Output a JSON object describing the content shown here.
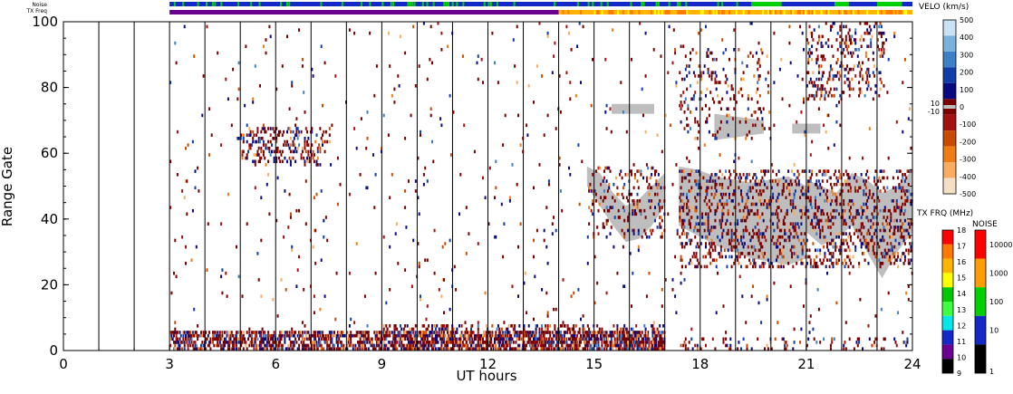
{
  "header": {
    "noise_label": "Noise",
    "txfreq_label": "TX Freq"
  },
  "chart_data": {
    "type": "heatmap",
    "xlabel": "UT hours",
    "ylabel": "Range Gate",
    "xlim": [
      0,
      24
    ],
    "ylim": [
      0,
      100
    ],
    "x_ticks": [
      "0",
      "3",
      "6",
      "9",
      "12",
      "15",
      "18",
      "21",
      "24"
    ],
    "y_ticks": [
      "0",
      "20",
      "40",
      "60",
      "80",
      "100"
    ],
    "scan_boundaries_hours": [
      1,
      2,
      3,
      4,
      5,
      6,
      7,
      8,
      9,
      10,
      11,
      12,
      13,
      14,
      15,
      16,
      17,
      18,
      19,
      20,
      21,
      22,
      23
    ],
    "velocity_colorbar": {
      "title": "VELO (km/s)",
      "tick_labels": [
        "500",
        "400",
        "300",
        "200",
        "100",
        "0",
        "-100",
        "-200",
        "-300",
        "-400",
        "-500"
      ],
      "ground_scatter_labels": [
        "10",
        "-10"
      ],
      "colors": [
        "#f5dfc4",
        "#f7ad62",
        "#f07c16",
        "#c84b00",
        "#a41010",
        "#7a0000",
        "#0a0a80",
        "#123ca8",
        "#3c80c8",
        "#7ab2dc",
        "#c8e2f4"
      ]
    },
    "txfreq_colorbar": {
      "title": "TX FRQ (MHz)",
      "tick_labels": [
        "18",
        "17",
        "16",
        "15",
        "14",
        "13",
        "12",
        "11",
        "10",
        "9"
      ],
      "colors": [
        "#ff0000",
        "#ff7800",
        "#ffb400",
        "#ffff00",
        "#00c800",
        "#40ff40",
        "#00e8e8",
        "#1428c8",
        "#6a0090",
        "#000000"
      ]
    },
    "noise_colorbar": {
      "title": "NOISE",
      "tick_labels": [
        "10000",
        "1000",
        "100",
        "10",
        "1"
      ],
      "colors": [
        "#ff0000",
        "#ff9c00",
        "#00d000",
        "#1428c8",
        "#000000"
      ]
    },
    "ground_scatter_color": "#bebebe",
    "noise_strip_segments": [
      {
        "start": 3,
        "end": 19.5,
        "color": "#1428c8"
      },
      {
        "start": 19.5,
        "end": 20.3,
        "color": "#00d000"
      },
      {
        "start": 20.3,
        "end": 21.8,
        "color": "#1428c8"
      },
      {
        "start": 21.8,
        "end": 22.2,
        "color": "#00d000"
      },
      {
        "start": 22.2,
        "end": 23.0,
        "color": "#1428c8"
      },
      {
        "start": 23.0,
        "end": 23.7,
        "color": "#00d000"
      },
      {
        "start": 23.7,
        "end": 24,
        "color": "#1428c8"
      }
    ],
    "txfreq_strip_segments": [
      {
        "start": 3,
        "end": 14,
        "color": "#6a0090"
      },
      {
        "start": 14,
        "end": 24,
        "color": "#ffb400"
      }
    ],
    "ground_scatter_regions": [
      {
        "start": 14.8,
        "end": 17.0,
        "lower": [
          50,
          44,
          38,
          33,
          34,
          38,
          44
        ],
        "upper": [
          56,
          54,
          48,
          44,
          46,
          50,
          54
        ]
      },
      {
        "start": 17.4,
        "end": 21.0,
        "lower": [
          38,
          35,
          32,
          30,
          28,
          27,
          26,
          28
        ],
        "upper": [
          56,
          55,
          53,
          52,
          51,
          52,
          53,
          50
        ]
      },
      {
        "start": 21.0,
        "end": 24.0,
        "lower": [
          36,
          32,
          34,
          38,
          30,
          22,
          30,
          36
        ],
        "upper": [
          52,
          50,
          48,
          54,
          52,
          48,
          50,
          55
        ]
      },
      {
        "start": 15.5,
        "end": 16.7,
        "lower": [
          72
        ],
        "upper": [
          75
        ]
      },
      {
        "start": 18.4,
        "end": 19.8,
        "lower": [
          64,
          66
        ],
        "upper": [
          72,
          70
        ]
      },
      {
        "start": 20.6,
        "end": 21.4,
        "lower": [
          66
        ],
        "upper": [
          69
        ]
      }
    ],
    "scatter_clusters": [
      {
        "start": 3.0,
        "end": 17.0,
        "gate_min": 0,
        "gate_max": 6,
        "density": 0.55
      },
      {
        "start": 9.0,
        "end": 17.0,
        "gate_min": 0,
        "gate_max": 8,
        "density": 0.25
      },
      {
        "start": 5.0,
        "end": 7.5,
        "gate_min": 56,
        "gate_max": 68,
        "density": 0.22
      },
      {
        "start": 14.8,
        "end": 17.0,
        "gate_min": 34,
        "gate_max": 56,
        "density": 0.12
      },
      {
        "start": 17.4,
        "end": 24.0,
        "gate_min": 25,
        "gate_max": 55,
        "density": 0.2
      },
      {
        "start": 17.4,
        "end": 20.0,
        "gate_min": 64,
        "gate_max": 92,
        "density": 0.08
      },
      {
        "start": 21.0,
        "end": 23.2,
        "gate_min": 76,
        "gate_max": 100,
        "density": 0.16
      },
      {
        "start": 17.4,
        "end": 24.0,
        "gate_min": 0,
        "gate_max": 4,
        "density": 0.12
      },
      {
        "start": 3.0,
        "end": 24.0,
        "gate_min": 5,
        "gate_max": 100,
        "density": 0.012
      }
    ]
  }
}
